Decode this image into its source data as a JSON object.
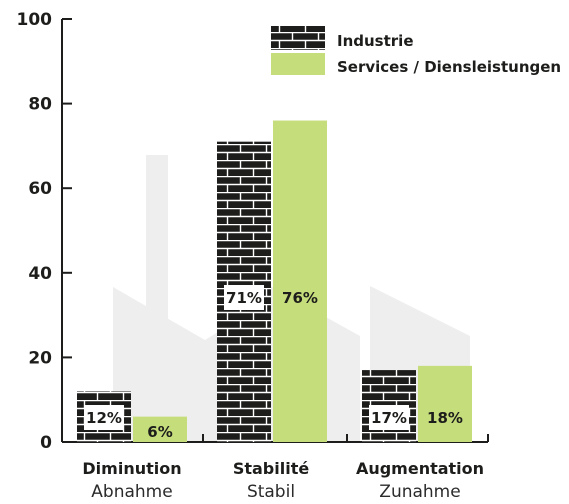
{
  "chart_data": {
    "type": "bar",
    "categories": [
      "Diminution",
      "Stabilité",
      "Augmentation"
    ],
    "categories_sub": [
      "Abnahme",
      "Stabil",
      "Zunahme"
    ],
    "series": [
      {
        "name": "Industrie",
        "values": [
          12,
          71,
          17
        ],
        "labels": [
          "12%",
          "71%",
          "17%"
        ]
      },
      {
        "name": "Services / Diensleistungen",
        "values": [
          6,
          76,
          18
        ],
        "labels": [
          "6%",
          "76%",
          "18%"
        ]
      }
    ],
    "ylim": [
      0,
      100
    ],
    "yticks": [
      0,
      20,
      40,
      60,
      80,
      100
    ],
    "grid": false,
    "legend_position": "top-right"
  },
  "colors": {
    "industrie": "#1d1d1b",
    "industrie_mortar": "#ffffff",
    "services": "#c6dd7c",
    "background_factory": "#eeeeee",
    "axis": "#1d1d1b",
    "label_box": "#ffffff"
  }
}
